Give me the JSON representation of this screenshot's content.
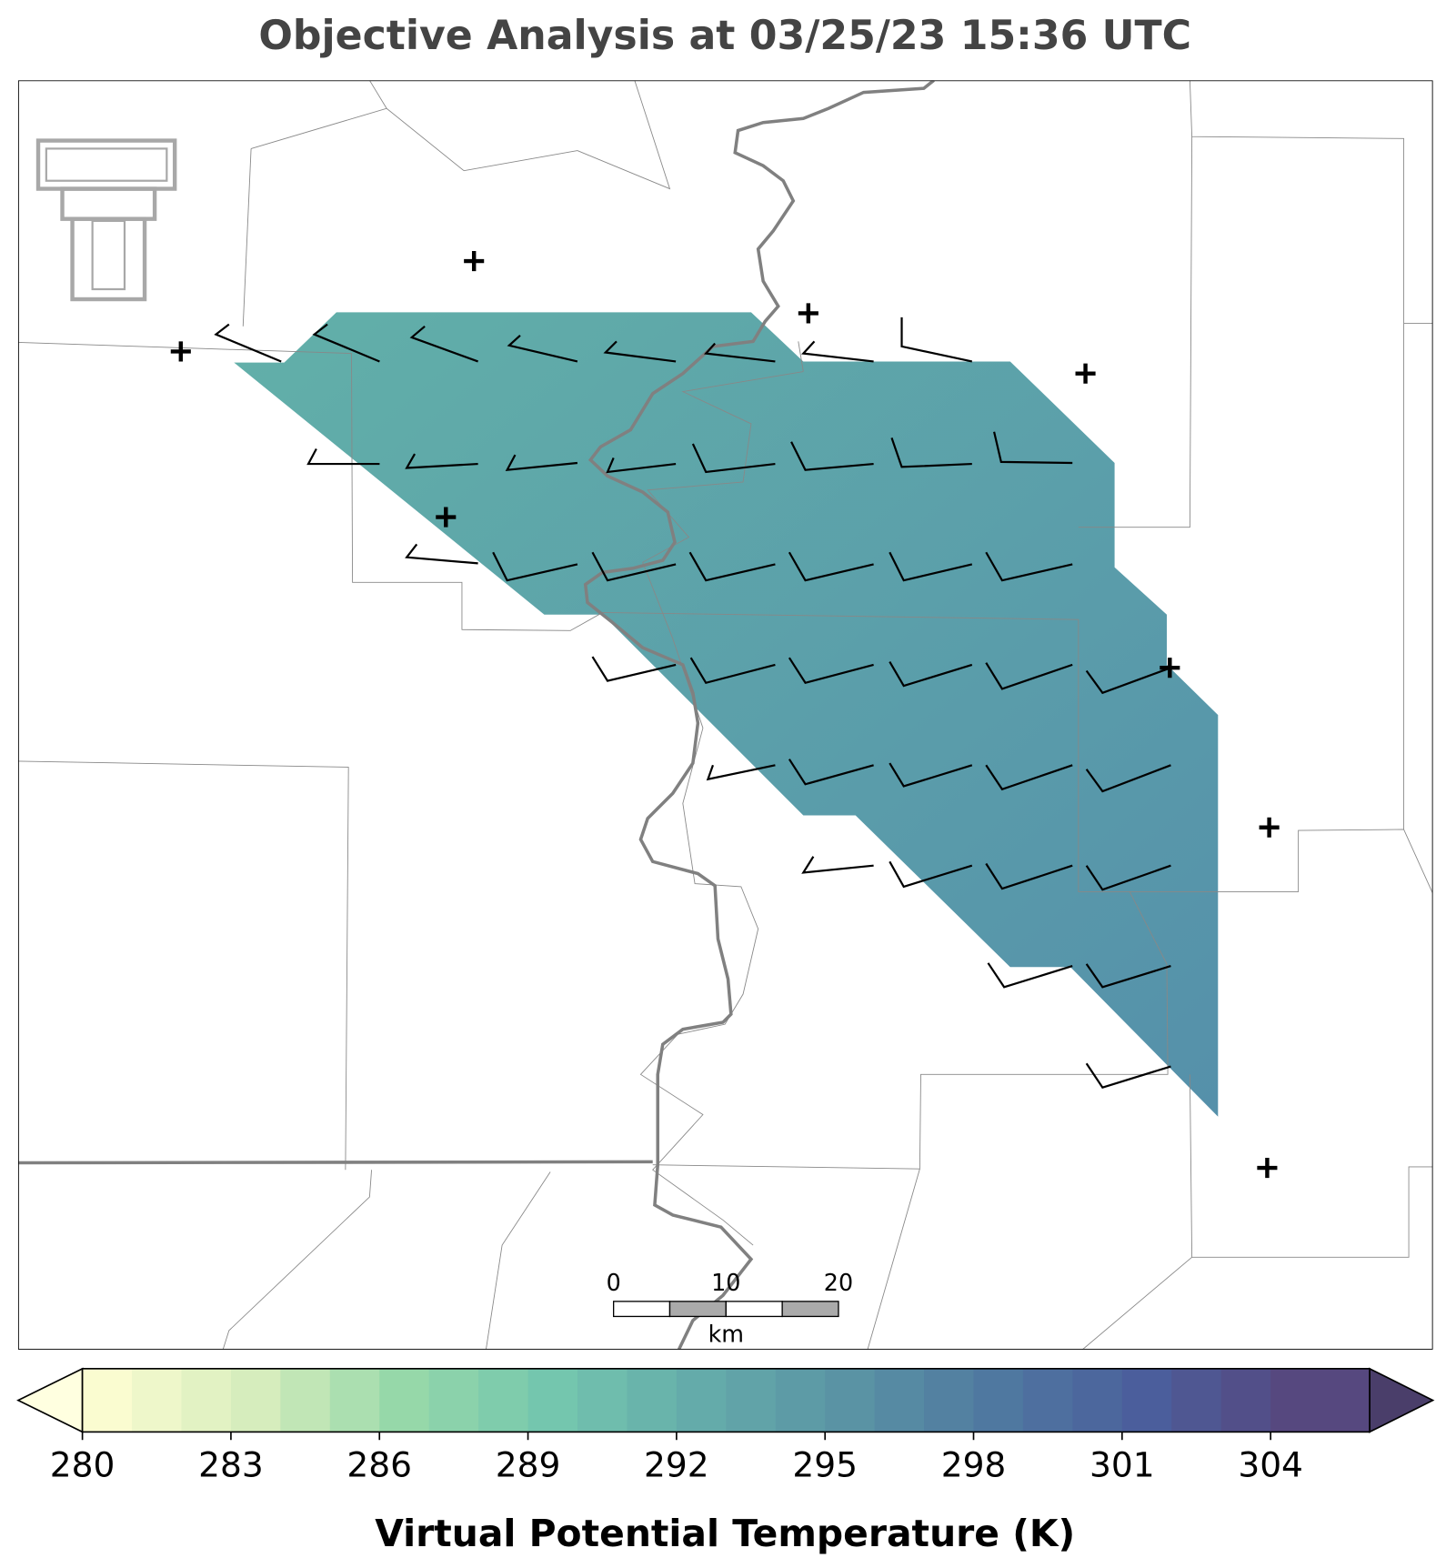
{
  "title": "Objective Analysis at 03/25/23 15:36 UTC",
  "colorbar": {
    "label": "Virtual Potential Temperature (K)",
    "lim": [
      280,
      306
    ],
    "ticks": [
      280,
      283,
      286,
      289,
      292,
      295,
      298,
      301,
      304
    ],
    "colors": [
      "#fafcd0",
      "#d6edbd",
      "#96d8a9",
      "#74c6ae",
      "#64abaa",
      "#5a93a4",
      "#4f78a0",
      "#4b5e9c",
      "#56487f"
    ],
    "under": "#ffffe0",
    "over": "#4a3e6a"
  },
  "scale_bar": {
    "ticks": [
      0,
      10,
      20
    ],
    "unit": "km"
  }
}
